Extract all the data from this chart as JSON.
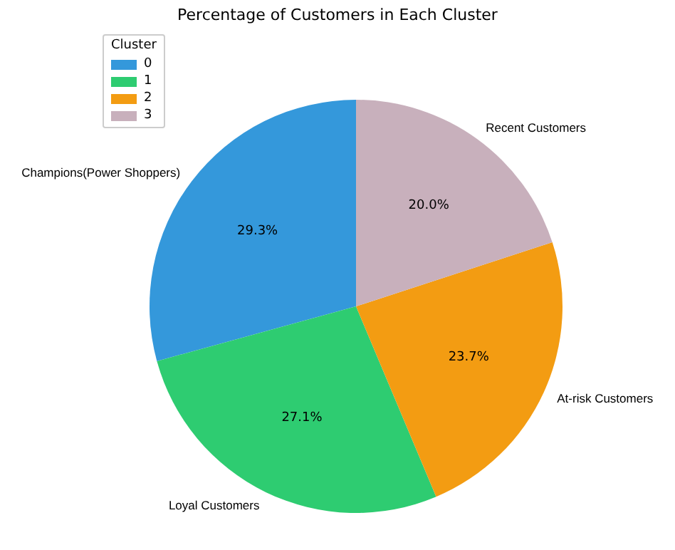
{
  "chart_data": {
    "type": "pie",
    "title": "Percentage of Customers in Each Cluster",
    "legend_title": "Cluster",
    "legend": "top left",
    "categories": [
      "0",
      "1",
      "2",
      "3"
    ],
    "values": [
      29.3,
      27.1,
      23.7,
      20.0
    ],
    "colors": [
      "#3498db",
      "#2ecc71",
      "#f39c12",
      "#c8b0bc"
    ],
    "annotations": [
      {
        "text": "Champions(Power Shoppers)",
        "x": "0"
      },
      {
        "text": "Loyal Customers",
        "x": "1"
      },
      {
        "text": "At-risk Customers",
        "x": "2"
      },
      {
        "text": "Recent Customers",
        "x": "3"
      }
    ],
    "value_labels": [
      "29.3%",
      "27.1%",
      "23.7%",
      "20.0%"
    ]
  }
}
